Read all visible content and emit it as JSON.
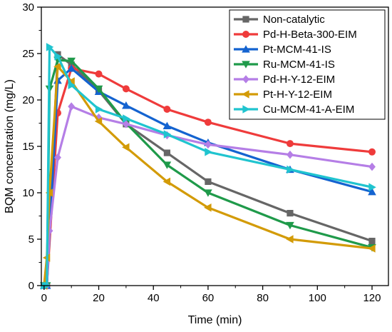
{
  "chart_data": {
    "type": "line",
    "title": "",
    "xlabel": "Time (min)",
    "ylabel": "BQM concentration (mg/L)",
    "xlim": [
      -1,
      126
    ],
    "ylim": [
      0,
      30
    ],
    "xticks": [
      0,
      20,
      40,
      60,
      80,
      100,
      120
    ],
    "yticks": [
      0,
      5,
      10,
      15,
      20,
      25,
      30
    ],
    "legend_position": "top-right",
    "grid": false,
    "series": [
      {
        "name": "Non-catalytic",
        "color": "#666666",
        "marker": "square",
        "x": [
          0,
          1,
          5,
          10,
          20,
          30,
          45,
          60,
          90,
          120
        ],
        "y": [
          0,
          0,
          24.9,
          23.8,
          21.0,
          17.4,
          14.3,
          11.2,
          7.8,
          4.8
        ]
      },
      {
        "name": "Pd-H-Beta-300-EIM",
        "color": "#ef3b3b",
        "marker": "circle",
        "x": [
          0,
          1,
          5,
          10,
          20,
          30,
          45,
          60,
          90,
          120
        ],
        "y": [
          0,
          0,
          18.6,
          23.4,
          22.8,
          21.2,
          19.0,
          17.6,
          15.3,
          14.4
        ]
      },
      {
        "name": "Pt-MCM-41-IS",
        "color": "#1463d0",
        "marker": "triangle-up",
        "x": [
          0,
          1,
          5,
          10,
          20,
          30,
          45,
          60,
          90,
          120
        ],
        "y": [
          0,
          0,
          22.1,
          23.4,
          20.9,
          19.4,
          17.2,
          15.4,
          12.5,
          10.1
        ]
      },
      {
        "name": "Ru-MCM-41-IS",
        "color": "#1f9a4a",
        "marker": "triangle-down",
        "x": [
          0,
          1,
          2,
          5,
          10,
          20,
          30,
          45,
          60,
          90,
          120
        ],
        "y": [
          0,
          0,
          21.2,
          24.3,
          24.2,
          21.2,
          17.5,
          13.0,
          10.0,
          6.5,
          4.1
        ]
      },
      {
        "name": "Pd-H-Y-12-EIM",
        "color": "#b57ee6",
        "marker": "diamond",
        "x": [
          0,
          1,
          2,
          5,
          10,
          20,
          30,
          45,
          60,
          90,
          120
        ],
        "y": [
          0,
          0,
          5.9,
          13.8,
          19.3,
          18.1,
          17.4,
          16.2,
          15.2,
          14.1,
          12.8
        ]
      },
      {
        "name": "Pt-H-Y-12-EIM",
        "color": "#d39b07",
        "marker": "triangle-left",
        "x": [
          0,
          1,
          2,
          5,
          10,
          20,
          30,
          45,
          60,
          90,
          120
        ],
        "y": [
          0,
          3.0,
          10.0,
          23.6,
          22.0,
          17.7,
          14.9,
          11.2,
          8.4,
          5.0,
          4.0
        ]
      },
      {
        "name": "Cu-MCM-41-A-EIM",
        "color": "#20c4cf",
        "marker": "triangle-right",
        "x": [
          0,
          1,
          2,
          5,
          10,
          20,
          30,
          45,
          60,
          90,
          120
        ],
        "y": [
          0,
          0,
          25.7,
          24.7,
          21.6,
          19.0,
          18.0,
          16.3,
          14.4,
          12.5,
          10.6
        ]
      }
    ]
  }
}
